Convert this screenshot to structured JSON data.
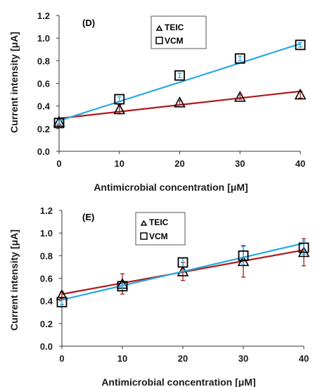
{
  "chart_data": [
    {
      "type": "scatter",
      "panel_label": "(D)",
      "xlabel": "Antimicrobial concentration [μM]",
      "ylabel": "Current intensity [μA]",
      "xlim": [
        0,
        40
      ],
      "ylim": [
        0,
        1.2
      ],
      "x_ticks": [
        "0",
        "10",
        "20",
        "30",
        "40"
      ],
      "y_ticks": [
        "0.0",
        "0.2",
        "0.4",
        "0.6",
        "0.8",
        "1.0",
        "1.2"
      ],
      "x_tick_values": [
        0,
        10,
        20,
        30,
        40
      ],
      "y_tick_values": [
        0,
        0.2,
        0.4,
        0.6,
        0.8,
        1.0,
        1.2
      ],
      "legend_position": "top-center",
      "series": [
        {
          "name": "TEIC",
          "marker": "triangle",
          "line_color": "#b01818",
          "x": [
            0,
            10,
            20,
            30,
            40
          ],
          "y": [
            0.26,
            0.37,
            0.43,
            0.48,
            0.5
          ],
          "err": [
            0.02,
            0.04,
            0.02,
            0.02,
            0.03
          ],
          "fit": [
            0.29,
            0.53
          ]
        },
        {
          "name": "VCM",
          "marker": "square",
          "line_color": "#29a9e1",
          "x": [
            0,
            10,
            20,
            30,
            40
          ],
          "y": [
            0.25,
            0.46,
            0.67,
            0.82,
            0.94
          ],
          "err": [
            0.02,
            0.02,
            0.02,
            0.02,
            0.02
          ],
          "fit": [
            0.27,
            0.95
          ]
        }
      ]
    },
    {
      "type": "scatter",
      "panel_label": "(E)",
      "xlabel": "Antimicrobial concentration [μM]",
      "ylabel": "Current intensity [μA]",
      "xlim": [
        0,
        40
      ],
      "ylim": [
        0,
        1.2
      ],
      "x_ticks": [
        "0",
        "10",
        "20",
        "30",
        "40"
      ],
      "y_ticks": [
        "0.0",
        "0.2",
        "0.4",
        "0.6",
        "0.8",
        "1.0",
        "1.2"
      ],
      "x_tick_values": [
        0,
        10,
        20,
        30,
        40
      ],
      "y_tick_values": [
        0,
        0.2,
        0.4,
        0.6,
        0.8,
        1.0,
        1.2
      ],
      "legend_position": "top-center",
      "series": [
        {
          "name": "TEIC",
          "marker": "triangle",
          "line_color": "#b01818",
          "x": [
            0,
            10,
            20,
            30,
            40
          ],
          "y": [
            0.45,
            0.55,
            0.66,
            0.75,
            0.83
          ],
          "err": [
            0.03,
            0.09,
            0.08,
            0.14,
            0.12
          ],
          "fit": [
            0.46,
            0.85
          ]
        },
        {
          "name": "VCM",
          "marker": "square",
          "line_color": "#29a9e1",
          "x": [
            0,
            10,
            20,
            30,
            40
          ],
          "y": [
            0.39,
            0.53,
            0.74,
            0.8,
            0.87
          ],
          "err": [
            0.02,
            0.04,
            0.04,
            0.08,
            0.06
          ],
          "fit": [
            0.41,
            0.91
          ]
        }
      ]
    }
  ]
}
